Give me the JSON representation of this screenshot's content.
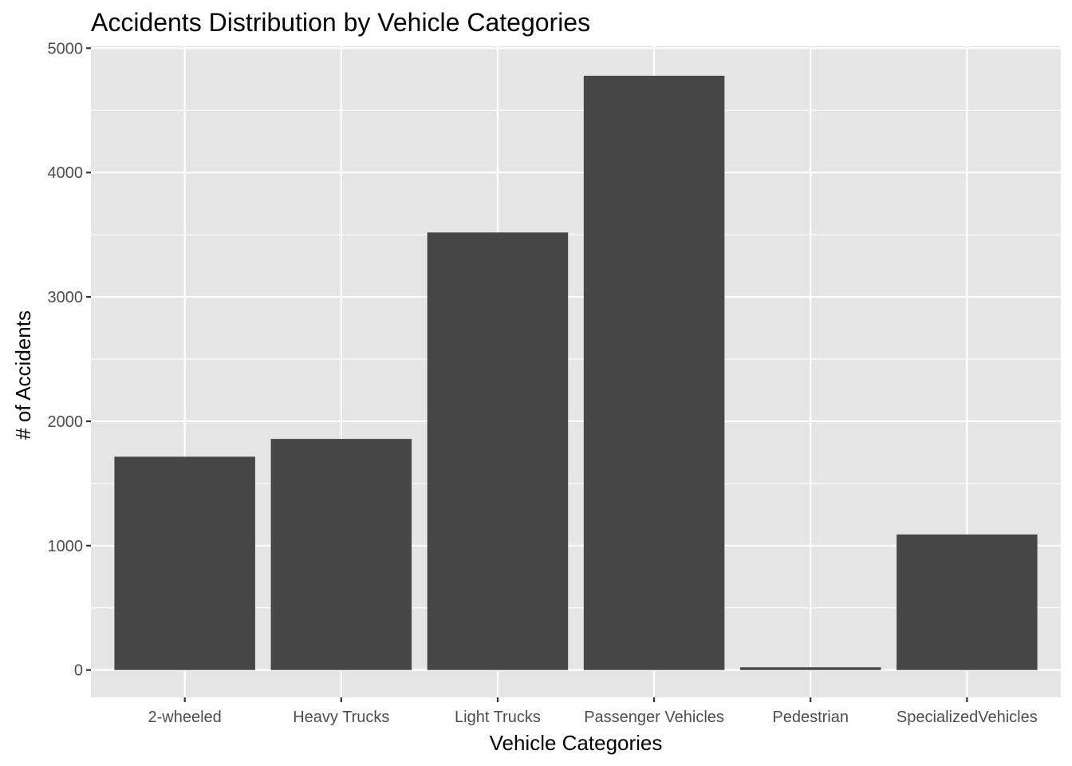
{
  "chart_data": {
    "type": "bar",
    "title": "Accidents Distribution by Vehicle Categories",
    "xlabel": "Vehicle Categories",
    "ylabel": "# of Accidents",
    "categories": [
      "2-wheeled",
      "Heavy Trucks",
      "Light Trucks",
      "Passenger Vehicles",
      "Pedestrian",
      "SpecializedVehicles"
    ],
    "values": [
      1715,
      1858,
      3518,
      4778,
      22,
      1090
    ],
    "ylim": [
      -220,
      5015
    ],
    "yticks": [
      0,
      1000,
      2000,
      3000,
      4000,
      5000
    ],
    "ytick_labels": [
      "0",
      "1000",
      "2000",
      "3000",
      "4000",
      "5000"
    ],
    "grid": true,
    "colors": {
      "panel": "#e5e5e5",
      "bar": "#474747",
      "grid": "#ffffff"
    }
  }
}
